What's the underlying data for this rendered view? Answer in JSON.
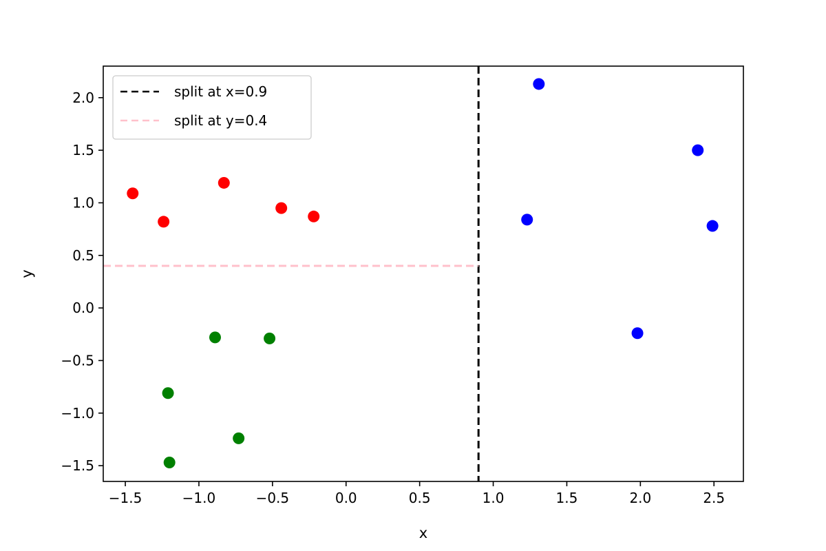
{
  "chart_data": {
    "type": "scatter",
    "xlabel": "x",
    "ylabel": "y",
    "xlim": [
      -1.65,
      2.7
    ],
    "ylim": [
      -1.65,
      2.3
    ],
    "x_ticks": [
      -1.5,
      -1.0,
      -0.5,
      0.0,
      0.5,
      1.0,
      1.5,
      2.0,
      2.5
    ],
    "x_tick_labels": [
      "−1.5",
      "−1.0",
      "−0.5",
      "0.0",
      "0.5",
      "1.0",
      "1.5",
      "2.0",
      "2.5"
    ],
    "y_ticks": [
      -1.5,
      -1.0,
      -0.5,
      0.0,
      0.5,
      1.0,
      1.5,
      2.0
    ],
    "y_tick_labels": [
      "−1.5",
      "−1.0",
      "−0.5",
      "0.0",
      "0.5",
      "1.0",
      "1.5",
      "2.0"
    ],
    "grid": false,
    "legend_position": "upper-left",
    "groups": [
      {
        "color": "#ff0000",
        "points": [
          [
            -1.45,
            1.09
          ],
          [
            -1.24,
            0.82
          ],
          [
            -0.83,
            1.19
          ],
          [
            -0.44,
            0.95
          ],
          [
            -0.22,
            0.87
          ]
        ]
      },
      {
        "color": "#008000",
        "points": [
          [
            -0.89,
            -0.28
          ],
          [
            -0.52,
            -0.29
          ],
          [
            -1.21,
            -0.81
          ],
          [
            -0.73,
            -1.24
          ],
          [
            -1.2,
            -1.47
          ]
        ]
      },
      {
        "color": "#0000ff",
        "points": [
          [
            1.31,
            2.13
          ],
          [
            2.39,
            1.5
          ],
          [
            1.23,
            0.84
          ],
          [
            2.49,
            0.78
          ],
          [
            1.98,
            -0.24
          ]
        ]
      }
    ],
    "reference_lines": [
      {
        "label": "split at x=0.9",
        "orientation": "vertical",
        "value": 0.9,
        "y_range": [
          -1.65,
          2.3
        ],
        "color": "#000000",
        "style": "dashed"
      },
      {
        "label": "split at y=0.4",
        "orientation": "horizontal",
        "value": 0.4,
        "x_range": [
          -1.65,
          0.9
        ],
        "color": "#ffc0cb",
        "style": "dashed"
      }
    ]
  }
}
